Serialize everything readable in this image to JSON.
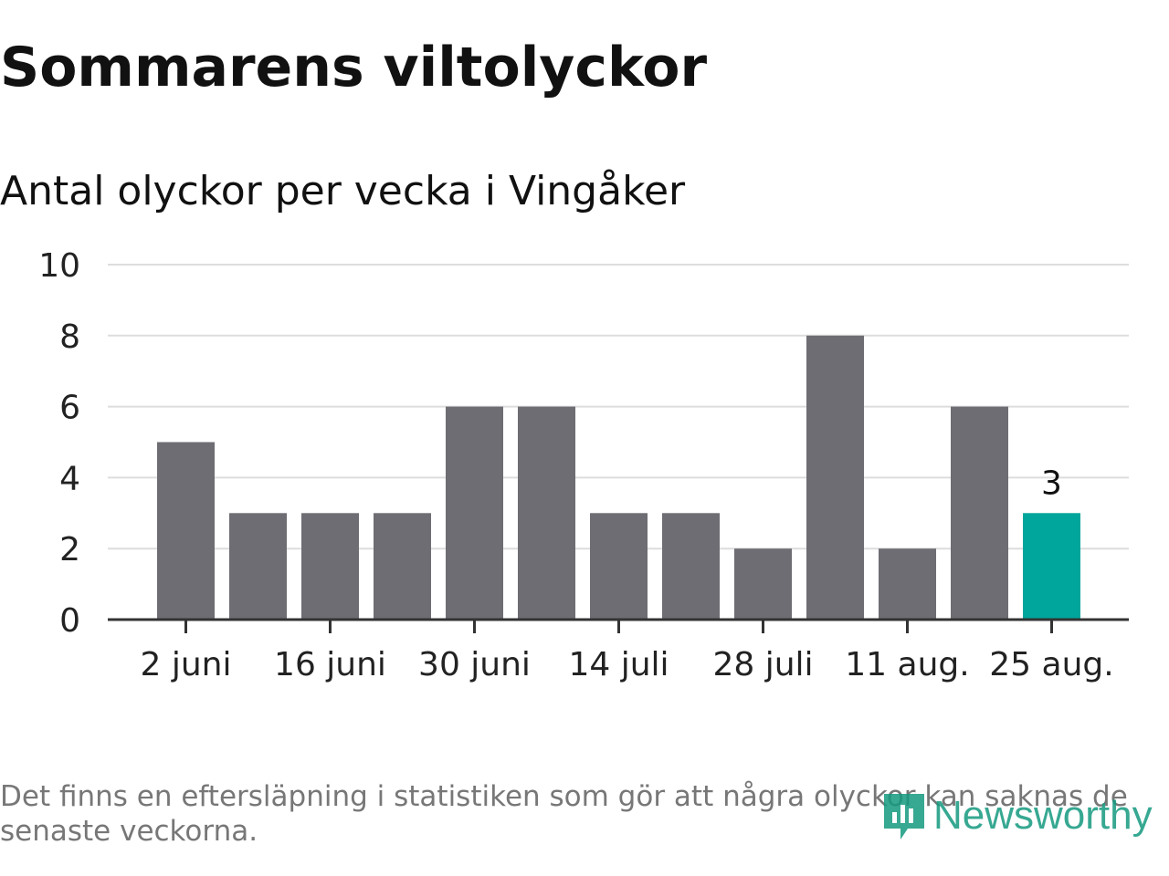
{
  "title": "Sommarens viltolyckor",
  "subtitle": "Antal olyckor per vecka i Vingåker",
  "footnote": "Det finns en eftersläpning i statistiken som gör att några olyckor kan saknas de senaste veckorna.",
  "logo_text": "Newsworthy",
  "colors": {
    "bar": "#6e6d73",
    "highlight": "#00a59b",
    "grid": "#dddddd",
    "axis": "#333333",
    "logo": "#159a80"
  },
  "chart_data": {
    "type": "bar",
    "title": "Sommarens viltolyckor",
    "subtitle": "Antal olyckor per vecka i Vingåker",
    "xlabel": "",
    "ylabel": "",
    "ylim": [
      0,
      10
    ],
    "yticks": [
      "0",
      "2",
      "4",
      "6",
      "8",
      "10"
    ],
    "xtick_labels": [
      "2 juni",
      "16 juni",
      "30 juni",
      "14 juli",
      "28 juli",
      "11 aug.",
      "25 aug."
    ],
    "values": [
      5,
      3,
      3,
      3,
      6,
      6,
      3,
      3,
      2,
      8,
      2,
      6,
      3
    ],
    "highlight_index": 12,
    "highlight_label": "3",
    "grid": true,
    "legend": "none"
  }
}
